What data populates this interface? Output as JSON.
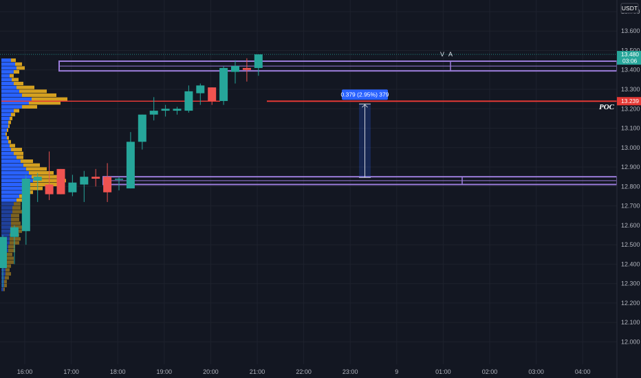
{
  "chart_data": {
    "type": "candlestick",
    "currency": "USDT",
    "y_ticks": [
      13.7,
      13.6,
      13.5,
      13.4,
      13.3,
      13.2,
      13.1,
      13.0,
      12.9,
      12.8,
      12.7,
      12.6,
      12.5,
      12.4,
      12.3,
      12.2,
      12.1,
      12.0
    ],
    "y_tick_labels": [
      "13.700",
      "13.600",
      "13.500",
      "13.400",
      "13.300",
      "13.200",
      "13.100",
      "13.000",
      "12.900",
      "12.800",
      "12.700",
      "12.600",
      "12.500",
      "12.400",
      "12.300",
      "12.200",
      "12.100",
      "12.000"
    ],
    "ylim": [
      11.92,
      13.76
    ],
    "x_ticks": [
      "16:00",
      "17:00",
      "18:00",
      "19:00",
      "20:00",
      "21:00",
      "22:00",
      "23:00",
      "9",
      "01:00",
      "02:00",
      "03:00",
      "04:00"
    ],
    "candles": [
      {
        "o": 12.38,
        "h": 12.55,
        "l": 12.28,
        "c": 12.54
      },
      {
        "o": 12.54,
        "h": 12.6,
        "l": 12.4,
        "c": 12.59
      },
      {
        "o": 12.57,
        "h": 12.86,
        "l": 12.5,
        "c": 12.84
      },
      {
        "o": 12.83,
        "h": 12.87,
        "l": 12.72,
        "c": 12.85
      },
      {
        "o": 12.81,
        "h": 12.98,
        "l": 12.73,
        "c": 12.76
      },
      {
        "o": 12.89,
        "h": 12.89,
        "l": 12.76,
        "c": 12.76
      },
      {
        "o": 12.77,
        "h": 12.86,
        "l": 12.75,
        "c": 12.82
      },
      {
        "o": 12.81,
        "h": 12.88,
        "l": 12.72,
        "c": 12.85
      },
      {
        "o": 12.85,
        "h": 12.89,
        "l": 12.8,
        "c": 12.84
      },
      {
        "o": 12.85,
        "h": 12.92,
        "l": 12.72,
        "c": 12.77
      },
      {
        "o": 12.84,
        "h": 12.85,
        "l": 12.78,
        "c": 12.84
      },
      {
        "o": 12.79,
        "h": 13.08,
        "l": 12.79,
        "c": 13.03
      },
      {
        "o": 13.03,
        "h": 13.17,
        "l": 12.99,
        "c": 13.17
      },
      {
        "o": 13.17,
        "h": 13.26,
        "l": 13.14,
        "c": 13.19
      },
      {
        "o": 13.19,
        "h": 13.22,
        "l": 13.16,
        "c": 13.2
      },
      {
        "o": 13.19,
        "h": 13.21,
        "l": 13.17,
        "c": 13.2
      },
      {
        "o": 13.19,
        "h": 13.32,
        "l": 13.18,
        "c": 13.29
      },
      {
        "o": 13.28,
        "h": 13.33,
        "l": 13.22,
        "c": 13.32
      },
      {
        "o": 13.31,
        "h": 13.31,
        "l": 13.22,
        "c": 13.24
      },
      {
        "o": 13.24,
        "h": 13.42,
        "l": 13.22,
        "c": 13.41
      },
      {
        "o": 13.39,
        "h": 13.45,
        "l": 13.33,
        "c": 13.42
      },
      {
        "o": 13.41,
        "h": 13.46,
        "l": 13.34,
        "c": 13.4
      },
      {
        "o": 13.41,
        "h": 13.48,
        "l": 13.37,
        "c": 13.48
      }
    ],
    "volume_profile": [
      {
        "p": 13.45,
        "up": 14,
        "down": 7
      },
      {
        "p": 13.43,
        "up": 20,
        "down": 10
      },
      {
        "p": 13.41,
        "up": 22,
        "down": 12
      },
      {
        "p": 13.39,
        "up": 18,
        "down": 8
      },
      {
        "p": 13.37,
        "up": 12,
        "down": 6
      },
      {
        "p": 13.35,
        "up": 15,
        "down": 10
      },
      {
        "p": 13.33,
        "up": 18,
        "down": 14
      },
      {
        "p": 13.31,
        "up": 22,
        "down": 26
      },
      {
        "p": 13.29,
        "up": 26,
        "down": 40
      },
      {
        "p": 13.27,
        "up": 30,
        "down": 50
      },
      {
        "p": 13.25,
        "up": 44,
        "down": 52
      },
      {
        "p": 13.23,
        "up": 40,
        "down": 46
      },
      {
        "p": 13.21,
        "up": 30,
        "down": 22
      },
      {
        "p": 13.19,
        "up": 18,
        "down": 8
      },
      {
        "p": 13.17,
        "up": 14,
        "down": 6
      },
      {
        "p": 13.15,
        "up": 12,
        "down": 4
      },
      {
        "p": 13.13,
        "up": 10,
        "down": 4
      },
      {
        "p": 13.11,
        "up": 10,
        "down": 2
      },
      {
        "p": 13.09,
        "up": 8,
        "down": 2
      },
      {
        "p": 13.07,
        "up": 6,
        "down": 2
      },
      {
        "p": 13.05,
        "up": 8,
        "down": 3
      },
      {
        "p": 13.03,
        "up": 10,
        "down": 4
      },
      {
        "p": 13.01,
        "up": 12,
        "down": 8
      },
      {
        "p": 12.99,
        "up": 14,
        "down": 16
      },
      {
        "p": 12.97,
        "up": 18,
        "down": 14
      },
      {
        "p": 12.95,
        "up": 22,
        "down": 10
      },
      {
        "p": 12.93,
        "up": 28,
        "down": 18
      },
      {
        "p": 12.91,
        "up": 32,
        "down": 24
      },
      {
        "p": 12.89,
        "up": 36,
        "down": 30
      },
      {
        "p": 12.87,
        "up": 40,
        "down": 36
      },
      {
        "p": 12.85,
        "up": 44,
        "down": 42
      },
      {
        "p": 12.83,
        "up": 46,
        "down": 48
      },
      {
        "p": 12.81,
        "up": 42,
        "down": 40
      },
      {
        "p": 12.79,
        "up": 36,
        "down": 24
      },
      {
        "p": 12.77,
        "up": 30,
        "down": 16
      },
      {
        "p": 12.75,
        "up": 26,
        "down": 12
      },
      {
        "p": 12.73,
        "up": 22,
        "down": 10
      },
      {
        "p": 12.71,
        "up": 18,
        "down": 10
      },
      {
        "p": 12.69,
        "up": 16,
        "down": 12
      },
      {
        "p": 12.67,
        "up": 16,
        "down": 14
      },
      {
        "p": 12.65,
        "up": 14,
        "down": 12
      },
      {
        "p": 12.63,
        "up": 14,
        "down": 12
      },
      {
        "p": 12.61,
        "up": 14,
        "down": 14
      },
      {
        "p": 12.59,
        "up": 14,
        "down": 16
      },
      {
        "p": 12.57,
        "up": 14,
        "down": 16
      },
      {
        "p": 12.55,
        "up": 12,
        "down": 14
      },
      {
        "p": 12.53,
        "up": 12,
        "down": 16
      },
      {
        "p": 12.51,
        "up": 12,
        "down": 14
      },
      {
        "p": 12.49,
        "up": 10,
        "down": 10
      },
      {
        "p": 12.47,
        "up": 10,
        "down": 10
      },
      {
        "p": 12.45,
        "up": 8,
        "down": 8
      },
      {
        "p": 12.43,
        "up": 8,
        "down": 10
      },
      {
        "p": 12.41,
        "up": 8,
        "down": 10
      },
      {
        "p": 12.39,
        "up": 6,
        "down": 8
      },
      {
        "p": 12.37,
        "up": 6,
        "down": 6
      },
      {
        "p": 12.35,
        "up": 6,
        "down": 8
      },
      {
        "p": 12.33,
        "up": 5,
        "down": 6
      },
      {
        "p": 12.31,
        "up": 4,
        "down": 4
      },
      {
        "p": 12.29,
        "up": 4,
        "down": 4
      },
      {
        "p": 12.27,
        "up": 3,
        "down": 2
      }
    ],
    "value_area": {
      "label": "V A",
      "high_zone": [
        13.395,
        13.445
      ],
      "low_zone": [
        12.81,
        12.85
      ]
    },
    "poc": {
      "label": "POC",
      "price": 13.239,
      "price_label": "13.239"
    },
    "last_price": {
      "price": 13.48,
      "label": "13.480",
      "countdown": "03:06"
    },
    "measure": {
      "label": "0.379 (2.95%) 379",
      "from": 12.846,
      "to": 13.225
    },
    "colors": {
      "up": "#26a69a",
      "down": "#ef5350",
      "profile_up": "#2962ff",
      "profile_down": "#d4a020",
      "value_area": "#9c7ddc",
      "poc": "#e53935",
      "background": "#131722",
      "grid": "#1e222d",
      "measure": "#2962ff"
    }
  }
}
